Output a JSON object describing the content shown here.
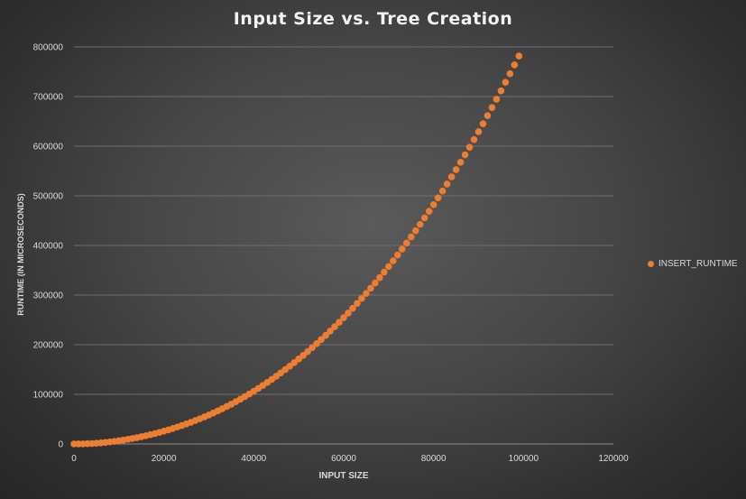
{
  "chart_data": {
    "type": "scatter",
    "title": "Input Size vs. Tree Creation",
    "xlabel": "INPUT SIZE",
    "ylabel": "RUNTIME (IN MICROSECONDS)",
    "xlim": [
      0,
      120000
    ],
    "ylim": [
      0,
      800000
    ],
    "x_ticks": [
      "0",
      "20000",
      "40000",
      "60000",
      "80000",
      "100000",
      "120000"
    ],
    "y_ticks": [
      "0",
      "100000",
      "200000",
      "300000",
      "400000",
      "500000",
      "600000",
      "700000",
      "800000"
    ],
    "grid": true,
    "legend_position": "right",
    "series": [
      {
        "name": "INSERT_RUNTIME",
        "color": "#ed7d31",
        "x": [
          0,
          1000,
          2000,
          3000,
          4000,
          5000,
          6000,
          7000,
          8000,
          9000,
          10000,
          11000,
          12000,
          13000,
          14000,
          15000,
          16000,
          17000,
          18000,
          19000,
          20000,
          21000,
          22000,
          23000,
          24000,
          25000,
          26000,
          27000,
          28000,
          29000,
          30000,
          31000,
          32000,
          33000,
          34000,
          35000,
          36000,
          37000,
          38000,
          39000,
          40000,
          41000,
          42000,
          43000,
          44000,
          45000,
          46000,
          47000,
          48000,
          49000,
          50000,
          51000,
          52000,
          53000,
          54000,
          55000,
          56000,
          57000,
          58000,
          59000,
          60000,
          61000,
          62000,
          63000,
          64000,
          65000,
          66000,
          67000,
          68000,
          69000,
          70000,
          71000,
          72000,
          73000,
          74000,
          75000,
          76000,
          77000,
          78000,
          79000,
          80000,
          81000,
          82000,
          83000,
          84000,
          85000,
          86000,
          87000,
          88000,
          89000,
          90000,
          91000,
          92000,
          93000,
          94000,
          95000,
          96000,
          97000,
          98000,
          99000
        ],
        "y": [
          0,
          50,
          200,
          500,
          900,
          1500,
          2200,
          3100,
          4100,
          5200,
          6500,
          7900,
          9400,
          11000,
          12700,
          14600,
          16600,
          18700,
          20900,
          23300,
          25800,
          28400,
          31200,
          34100,
          37100,
          40300,
          43600,
          47100,
          50700,
          54400,
          58300,
          62400,
          66600,
          71000,
          75500,
          80200,
          85100,
          90100,
          95300,
          100700,
          106200,
          111900,
          117800,
          123900,
          130100,
          136500,
          143100,
          149900,
          156800,
          163900,
          171200,
          178600,
          186300,
          194100,
          202200,
          210400,
          218800,
          227400,
          236200,
          245200,
          254400,
          263800,
          273400,
          283200,
          293200,
          303400,
          313800,
          324400,
          335200,
          346300,
          357500,
          369000,
          380700,
          392600,
          404800,
          417100,
          429700,
          442500,
          455500,
          468700,
          482200,
          495800,
          509700,
          523800,
          538200,
          552800,
          567600,
          582600,
          597900,
          613400,
          629200,
          645200,
          661400,
          677900,
          694600,
          711500,
          728700,
          746100,
          763800,
          781700
        ]
      }
    ]
  }
}
